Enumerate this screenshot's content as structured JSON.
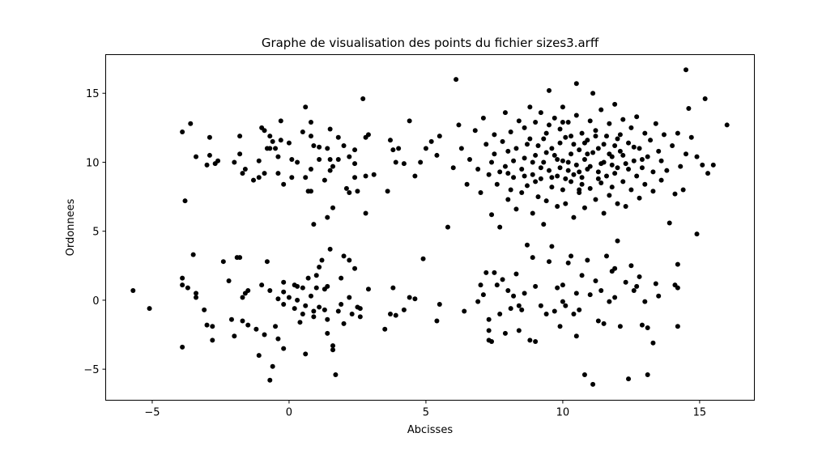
{
  "chart_data": {
    "type": "scatter",
    "title": "Graphe de visualisation des points du fichier sizes3.arff",
    "xlabel": "Abcisses",
    "ylabel": "Ordonnees",
    "xlim": [
      -6.7,
      17.0
    ],
    "ylim": [
      -7.25,
      17.8
    ],
    "xticks": [
      -5,
      0,
      5,
      10,
      15
    ],
    "yticks": [
      -5,
      0,
      5,
      10,
      15
    ],
    "grid": false,
    "marker_color": "#000000",
    "points": [
      [
        -3.9,
        12.2
      ],
      [
        -3.6,
        12.8
      ],
      [
        -3.4,
        10.4
      ],
      [
        -3.8,
        7.2
      ],
      [
        -3.0,
        9.8
      ],
      [
        -2.9,
        11.8
      ],
      [
        -2.7,
        9.9
      ],
      [
        -2.6,
        10.1
      ],
      [
        -2.9,
        10.5
      ],
      [
        -1.8,
        11.9
      ],
      [
        -2.0,
        10.0
      ],
      [
        -1.8,
        10.6
      ],
      [
        -1.7,
        9.2
      ],
      [
        -1.6,
        9.5
      ],
      [
        -1.1,
        10.1
      ],
      [
        -1.0,
        12.5
      ],
      [
        -0.9,
        12.3
      ],
      [
        -0.8,
        11.0
      ],
      [
        -0.7,
        11.0
      ],
      [
        -0.7,
        11.9
      ],
      [
        -0.6,
        11.5
      ],
      [
        -0.9,
        9.2
      ],
      [
        -1.1,
        8.9
      ],
      [
        -0.5,
        11.0
      ],
      [
        -0.3,
        11.6
      ],
      [
        -0.4,
        10.4
      ],
      [
        -0.4,
        9.2
      ],
      [
        -0.3,
        13.0
      ],
      [
        -0.2,
        8.4
      ],
      [
        0.1,
        10.2
      ],
      [
        0.1,
        8.9
      ],
      [
        0.3,
        10.0
      ],
      [
        0.5,
        12.2
      ],
      [
        0.6,
        14.0
      ],
      [
        0.8,
        12.9
      ],
      [
        0.8,
        11.9
      ],
      [
        0.9,
        11.2
      ],
      [
        0.8,
        9.5
      ],
      [
        0.8,
        7.9
      ],
      [
        0.9,
        5.5
      ],
      [
        1.1,
        10.2
      ],
      [
        1.3,
        8.7
      ],
      [
        1.4,
        6.0
      ],
      [
        1.4,
        11.0
      ],
      [
        1.5,
        12.4
      ],
      [
        1.5,
        10.2
      ],
      [
        1.6,
        6.7
      ],
      [
        1.6,
        9.7
      ],
      [
        1.8,
        11.8
      ],
      [
        2.0,
        11.2
      ],
      [
        2.1,
        8.1
      ],
      [
        2.2,
        7.8
      ],
      [
        2.4,
        10.9
      ],
      [
        2.4,
        9.9
      ],
      [
        2.5,
        7.9
      ],
      [
        2.7,
        14.6
      ],
      [
        2.8,
        11.8
      ],
      [
        2.9,
        12.0
      ],
      [
        2.8,
        6.3
      ],
      [
        3.1,
        9.1
      ],
      [
        2.8,
        9.0
      ],
      [
        2.4,
        8.9
      ],
      [
        0.6,
        8.9
      ],
      [
        1.1,
        11.1
      ],
      [
        1.5,
        9.4
      ],
      [
        1.8,
        10.2
      ],
      [
        3.7,
        11.6
      ],
      [
        3.8,
        10.9
      ],
      [
        4.0,
        11.0
      ],
      [
        3.6,
        7.9
      ],
      [
        4.4,
        13.0
      ],
      [
        3.9,
        10.0
      ],
      [
        4.2,
        9.9
      ],
      [
        -1.3,
        8.7
      ],
      [
        0.0,
        11.4
      ],
      [
        0.7,
        7.9
      ],
      [
        2.2,
        10.4
      ],
      [
        -5.7,
        0.7
      ],
      [
        -5.1,
        -0.6
      ],
      [
        -3.9,
        1.6
      ],
      [
        -3.9,
        1.1
      ],
      [
        -3.7,
        0.9
      ],
      [
        -3.9,
        -3.4
      ],
      [
        -3.5,
        3.3
      ],
      [
        -3.4,
        0.5
      ],
      [
        -3.4,
        0.2
      ],
      [
        -3.1,
        -0.7
      ],
      [
        -3.0,
        -1.8
      ],
      [
        -2.8,
        -1.9
      ],
      [
        -2.8,
        -2.9
      ],
      [
        -2.4,
        2.8
      ],
      [
        -2.2,
        1.4
      ],
      [
        -2.1,
        -1.4
      ],
      [
        -2.0,
        -2.6
      ],
      [
        -1.9,
        3.1
      ],
      [
        -1.8,
        3.1
      ],
      [
        -1.7,
        0.2
      ],
      [
        -1.6,
        0.5
      ],
      [
        -1.5,
        0.7
      ],
      [
        -1.7,
        -1.5
      ],
      [
        -1.5,
        -1.8
      ],
      [
        -1.2,
        -2.1
      ],
      [
        -1.1,
        -4.0
      ],
      [
        -1.0,
        1.1
      ],
      [
        -0.8,
        2.8
      ],
      [
        -0.9,
        -2.5
      ],
      [
        -0.7,
        0.7
      ],
      [
        -0.7,
        -5.8
      ],
      [
        -0.6,
        -4.8
      ],
      [
        -0.5,
        -1.9
      ],
      [
        -0.4,
        0.1
      ],
      [
        -0.4,
        -2.8
      ],
      [
        -0.2,
        1.3
      ],
      [
        -0.2,
        -0.3
      ],
      [
        -0.2,
        -3.5
      ],
      [
        0.0,
        0.2
      ],
      [
        0.2,
        -0.6
      ],
      [
        0.3,
        1.0
      ],
      [
        0.4,
        -1.6
      ],
      [
        0.5,
        0.9
      ],
      [
        0.6,
        -3.9
      ],
      [
        0.6,
        -0.4
      ],
      [
        0.7,
        1.6
      ],
      [
        0.8,
        0.3
      ],
      [
        0.9,
        -1.2
      ],
      [
        1.0,
        1.8
      ],
      [
        1.1,
        2.4
      ],
      [
        1.1,
        -0.5
      ],
      [
        1.2,
        2.9
      ],
      [
        1.3,
        0.8
      ],
      [
        1.3,
        -0.7
      ],
      [
        1.4,
        -1.4
      ],
      [
        1.4,
        -2.4
      ],
      [
        1.5,
        3.7
      ],
      [
        1.6,
        -3.3
      ],
      [
        1.6,
        -3.6
      ],
      [
        1.7,
        -5.4
      ],
      [
        1.8,
        -0.8
      ],
      [
        1.9,
        1.6
      ],
      [
        2.0,
        3.2
      ],
      [
        2.0,
        -1.7
      ],
      [
        2.2,
        2.9
      ],
      [
        2.2,
        0.2
      ],
      [
        2.3,
        -1.0
      ],
      [
        2.4,
        2.3
      ],
      [
        2.5,
        -0.5
      ],
      [
        2.6,
        -1.2
      ],
      [
        2.6,
        -0.6
      ],
      [
        2.9,
        0.8
      ],
      [
        3.5,
        -2.1
      ],
      [
        3.7,
        -1.0
      ],
      [
        3.8,
        0.9
      ],
      [
        3.9,
        -1.1
      ],
      [
        4.2,
        -0.7
      ],
      [
        4.4,
        0.2
      ],
      [
        4.6,
        0.1
      ],
      [
        4.9,
        3.0
      ],
      [
        5.5,
        -0.3
      ],
      [
        5.4,
        -1.5
      ],
      [
        0.3,
        0.0
      ],
      [
        1.0,
        0.9
      ],
      [
        0.2,
        1.1
      ],
      [
        -0.2,
        0.6
      ],
      [
        1.4,
        1.0
      ],
      [
        0.5,
        -1.0
      ],
      [
        1.9,
        -0.3
      ],
      [
        0.9,
        -0.8
      ],
      [
        6.4,
        -0.8
      ],
      [
        6.9,
        -0.1
      ],
      [
        7.0,
        1.1
      ],
      [
        7.1,
        0.4
      ],
      [
        7.2,
        2.0
      ],
      [
        7.3,
        -1.4
      ],
      [
        7.3,
        -2.2
      ],
      [
        7.3,
        -2.9
      ],
      [
        7.4,
        -3.0
      ],
      [
        7.5,
        2.0
      ],
      [
        7.6,
        1.1
      ],
      [
        7.7,
        -1.0
      ],
      [
        7.8,
        1.5
      ],
      [
        7.9,
        -2.4
      ],
      [
        8.0,
        0.7
      ],
      [
        8.1,
        -0.6
      ],
      [
        8.2,
        0.3
      ],
      [
        8.3,
        1.9
      ],
      [
        8.4,
        -2.2
      ],
      [
        8.5,
        -0.7
      ],
      [
        8.6,
        0.5
      ],
      [
        8.7,
        4.0
      ],
      [
        8.8,
        -2.9
      ],
      [
        8.9,
        3.1
      ],
      [
        9.0,
        -3.0
      ],
      [
        9.0,
        1.0
      ],
      [
        9.2,
        -0.4
      ],
      [
        9.4,
        -1.0
      ],
      [
        9.5,
        2.8
      ],
      [
        9.6,
        3.9
      ],
      [
        9.8,
        0.9
      ],
      [
        9.9,
        -1.9
      ],
      [
        10.0,
        1.1
      ],
      [
        10.1,
        -0.4
      ],
      [
        10.2,
        2.7
      ],
      [
        10.3,
        3.2
      ],
      [
        10.4,
        -1.0
      ],
      [
        10.5,
        -2.6
      ],
      [
        10.5,
        0.5
      ],
      [
        10.6,
        -0.7
      ],
      [
        10.7,
        1.8
      ],
      [
        10.8,
        -5.4
      ],
      [
        10.9,
        2.9
      ],
      [
        11.0,
        0.4
      ],
      [
        11.1,
        -6.1
      ],
      [
        11.2,
        1.4
      ],
      [
        11.3,
        -1.5
      ],
      [
        11.4,
        0.7
      ],
      [
        11.5,
        -1.7
      ],
      [
        11.6,
        3.2
      ],
      [
        11.7,
        -0.1
      ],
      [
        11.8,
        2.1
      ],
      [
        11.9,
        0.2
      ],
      [
        12.0,
        4.3
      ],
      [
        12.1,
        -1.9
      ],
      [
        12.3,
        1.3
      ],
      [
        12.4,
        -5.7
      ],
      [
        12.5,
        2.5
      ],
      [
        12.6,
        0.7
      ],
      [
        12.8,
        1.7
      ],
      [
        12.9,
        -1.8
      ],
      [
        13.0,
        -0.1
      ],
      [
        13.1,
        -5.4
      ],
      [
        13.3,
        -3.1
      ],
      [
        13.4,
        1.2
      ],
      [
        13.1,
        -2.0
      ],
      [
        13.5,
        0.3
      ],
      [
        14.1,
        1.1
      ],
      [
        14.2,
        0.9
      ],
      [
        14.2,
        -1.9
      ],
      [
        14.2,
        2.6
      ],
      [
        10.0,
        -0.1
      ],
      [
        11.9,
        2.3
      ],
      [
        12.7,
        1.0
      ],
      [
        8.4,
        -0.4
      ],
      [
        9.7,
        -0.8
      ],
      [
        6.1,
        16.0
      ],
      [
        14.5,
        16.7
      ],
      [
        15.2,
        14.6
      ],
      [
        16.0,
        12.7
      ],
      [
        15.5,
        9.8
      ],
      [
        15.3,
        9.2
      ],
      [
        14.9,
        4.8
      ],
      [
        5.2,
        11.5
      ],
      [
        5.5,
        11.9
      ],
      [
        4.8,
        10.0
      ],
      [
        5.0,
        11.0
      ],
      [
        5.8,
        5.3
      ],
      [
        6.0,
        9.6
      ],
      [
        13.9,
        5.6
      ],
      [
        14.4,
        8.0
      ],
      [
        14.7,
        11.8
      ],
      [
        15.1,
        9.8
      ],
      [
        14.9,
        10.4
      ],
      [
        4.6,
        9.0
      ],
      [
        5.4,
        10.5
      ],
      [
        6.2,
        12.7
      ],
      [
        6.3,
        11.0
      ],
      [
        6.5,
        8.4
      ],
      [
        6.6,
        10.2
      ],
      [
        6.8,
        12.3
      ],
      [
        6.9,
        9.5
      ],
      [
        7.0,
        7.8
      ],
      [
        7.1,
        13.2
      ],
      [
        7.2,
        11.3
      ],
      [
        7.3,
        9.1
      ],
      [
        7.4,
        6.2
      ],
      [
        7.5,
        10.6
      ],
      [
        7.5,
        12.0
      ],
      [
        7.6,
        8.4
      ],
      [
        7.7,
        5.3
      ],
      [
        7.8,
        11.5
      ],
      [
        7.9,
        9.7
      ],
      [
        7.9,
        13.6
      ],
      [
        8.0,
        7.3
      ],
      [
        8.0,
        10.8
      ],
      [
        8.1,
        12.2
      ],
      [
        8.2,
        8.9
      ],
      [
        8.3,
        11.0
      ],
      [
        8.3,
        6.6
      ],
      [
        8.4,
        13.0
      ],
      [
        8.5,
        9.5
      ],
      [
        8.5,
        7.8
      ],
      [
        8.6,
        12.5
      ],
      [
        8.6,
        10.3
      ],
      [
        8.7,
        8.3
      ],
      [
        8.8,
        11.7
      ],
      [
        8.8,
        14.0
      ],
      [
        8.9,
        9.1
      ],
      [
        8.9,
        6.3
      ],
      [
        9.0,
        10.5
      ],
      [
        9.0,
        12.9
      ],
      [
        9.1,
        7.5
      ],
      [
        9.1,
        11.2
      ],
      [
        9.2,
        8.8
      ],
      [
        9.2,
        13.6
      ],
      [
        9.3,
        10.0
      ],
      [
        9.3,
        5.5
      ],
      [
        9.4,
        12.1
      ],
      [
        9.4,
        7.2
      ],
      [
        9.5,
        9.4
      ],
      [
        9.5,
        15.2
      ],
      [
        9.6,
        11.0
      ],
      [
        9.6,
        8.2
      ],
      [
        9.7,
        13.2
      ],
      [
        9.7,
        10.5
      ],
      [
        9.8,
        6.8
      ],
      [
        9.8,
        9.0
      ],
      [
        9.9,
        12.4
      ],
      [
        9.9,
        11.4
      ],
      [
        10.0,
        8.0
      ],
      [
        10.0,
        10.1
      ],
      [
        10.0,
        14.0
      ],
      [
        10.1,
        7.0
      ],
      [
        10.1,
        11.8
      ],
      [
        10.2,
        9.4
      ],
      [
        10.2,
        12.9
      ],
      [
        10.3,
        8.6
      ],
      [
        10.3,
        10.6
      ],
      [
        10.4,
        6.0
      ],
      [
        10.4,
        11.3
      ],
      [
        10.5,
        9.8
      ],
      [
        10.5,
        13.4
      ],
      [
        10.5,
        15.7
      ],
      [
        10.6,
        7.8
      ],
      [
        10.6,
        10.9
      ],
      [
        10.7,
        12.1
      ],
      [
        10.7,
        8.9
      ],
      [
        10.8,
        10.2
      ],
      [
        10.8,
        6.7
      ],
      [
        10.9,
        11.6
      ],
      [
        10.9,
        9.5
      ],
      [
        11.0,
        13.0
      ],
      [
        11.0,
        8.1
      ],
      [
        11.1,
        10.7
      ],
      [
        11.1,
        15.0
      ],
      [
        11.2,
        7.3
      ],
      [
        11.2,
        12.3
      ],
      [
        11.3,
        9.3
      ],
      [
        11.3,
        11.0
      ],
      [
        11.4,
        8.5
      ],
      [
        11.4,
        13.8
      ],
      [
        11.5,
        10.0
      ],
      [
        11.5,
        6.3
      ],
      [
        11.6,
        11.9
      ],
      [
        11.6,
        9.0
      ],
      [
        11.7,
        7.6
      ],
      [
        11.7,
        12.8
      ],
      [
        11.8,
        10.4
      ],
      [
        11.8,
        8.2
      ],
      [
        11.9,
        11.2
      ],
      [
        11.9,
        14.2
      ],
      [
        12.0,
        9.6
      ],
      [
        12.0,
        7.0
      ],
      [
        12.1,
        12.0
      ],
      [
        12.1,
        10.8
      ],
      [
        12.2,
        8.6
      ],
      [
        12.2,
        13.1
      ],
      [
        12.3,
        9.9
      ],
      [
        12.3,
        6.8
      ],
      [
        12.4,
        11.4
      ],
      [
        12.5,
        8.0
      ],
      [
        12.5,
        12.5
      ],
      [
        12.6,
        10.1
      ],
      [
        12.7,
        9.0
      ],
      [
        12.7,
        13.3
      ],
      [
        12.8,
        11.0
      ],
      [
        12.8,
        7.4
      ],
      [
        12.9,
        9.6
      ],
      [
        13.0,
        12.1
      ],
      [
        13.0,
        8.4
      ],
      [
        13.1,
        10.4
      ],
      [
        13.2,
        11.6
      ],
      [
        13.3,
        7.9
      ],
      [
        13.3,
        9.3
      ],
      [
        13.4,
        12.8
      ],
      [
        13.5,
        10.8
      ],
      [
        13.6,
        8.7
      ],
      [
        13.7,
        12.0
      ],
      [
        13.8,
        9.4
      ],
      [
        14.0,
        11.2
      ],
      [
        14.1,
        7.7
      ],
      [
        14.2,
        12.1
      ],
      [
        14.3,
        9.7
      ],
      [
        14.5,
        10.6
      ],
      [
        14.6,
        13.9
      ],
      [
        8.2,
        10.1
      ],
      [
        8.7,
        11.3
      ],
      [
        9.4,
        10.7
      ],
      [
        9.8,
        10.2
      ],
      [
        10.2,
        10.0
      ],
      [
        10.6,
        9.3
      ],
      [
        11.0,
        9.7
      ],
      [
        11.4,
        9.9
      ],
      [
        11.9,
        9.2
      ],
      [
        12.4,
        9.5
      ],
      [
        9.0,
        8.6
      ],
      [
        9.6,
        8.9
      ],
      [
        10.1,
        8.8
      ],
      [
        10.7,
        8.4
      ],
      [
        11.3,
        8.8
      ],
      [
        11.8,
        9.8
      ],
      [
        12.2,
        10.5
      ],
      [
        9.2,
        9.6
      ],
      [
        10.4,
        9.1
      ],
      [
        10.9,
        10.6
      ],
      [
        7.7,
        9.3
      ],
      [
        8.1,
        8.0
      ],
      [
        8.6,
        9.0
      ],
      [
        9.3,
        11.7
      ],
      [
        9.9,
        9.6
      ],
      [
        10.3,
        11.9
      ],
      [
        10.8,
        11.4
      ],
      [
        11.5,
        11.3
      ],
      [
        12.0,
        11.7
      ],
      [
        12.6,
        11.1
      ],
      [
        7.4,
        10.0
      ],
      [
        8.0,
        9.2
      ],
      [
        8.9,
        10.0
      ],
      [
        9.5,
        12.7
      ],
      [
        10.0,
        12.9
      ],
      [
        11.2,
        11.9
      ],
      [
        11.7,
        10.6
      ],
      [
        12.9,
        10.2
      ],
      [
        13.6,
        10.1
      ],
      [
        10.6,
        8.0
      ]
    ]
  }
}
